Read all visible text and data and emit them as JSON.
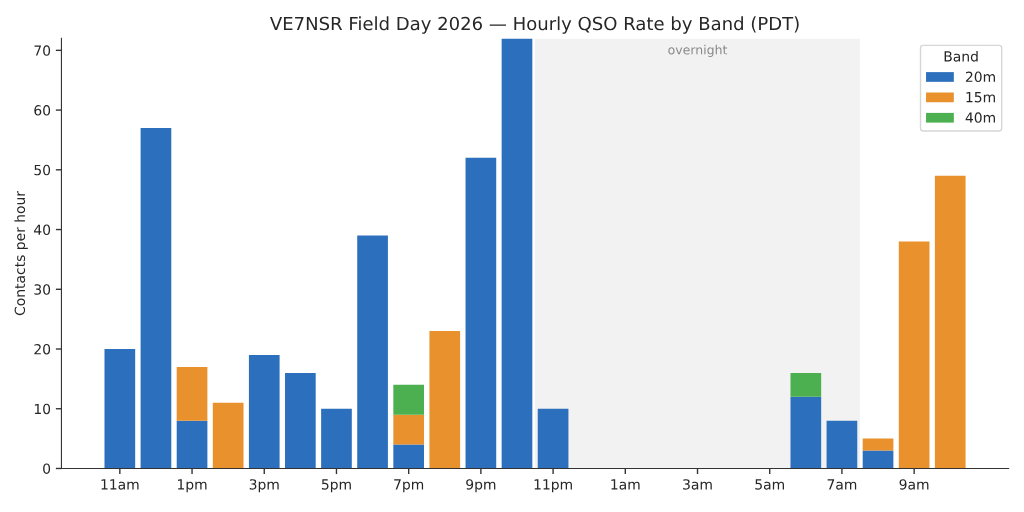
{
  "chart_data": {
    "type": "bar",
    "title": "VE7NSR Field Day 2026 — Hourly QSO Rate by Band (PDT)",
    "ylabel": "Contacts per hour",
    "legend_title": "Band",
    "categories": [
      "11am",
      null,
      "1pm",
      null,
      "3pm",
      null,
      "5pm",
      null,
      "7pm",
      null,
      "9pm",
      null,
      "11pm",
      null,
      "1am",
      null,
      "3am",
      null,
      "5am",
      null,
      "7am",
      null,
      "9am",
      null
    ],
    "stacked": true,
    "series": [
      {
        "name": "20m",
        "color": "#2c6fbd",
        "values": [
          20,
          57,
          8,
          0,
          19,
          16,
          10,
          39,
          4,
          0,
          52,
          72,
          10,
          0,
          0,
          0,
          0,
          0,
          0,
          12,
          8,
          3,
          0,
          0
        ]
      },
      {
        "name": "15m",
        "color": "#e8912d",
        "values": [
          0,
          0,
          9,
          11,
          0,
          0,
          0,
          0,
          5,
          23,
          0,
          0,
          0,
          0,
          0,
          0,
          0,
          0,
          0,
          0,
          0,
          2,
          38,
          49
        ]
      },
      {
        "name": "40m",
        "color": "#4caf50",
        "values": [
          0,
          0,
          0,
          0,
          0,
          0,
          0,
          0,
          5,
          0,
          0,
          0,
          0,
          0,
          0,
          0,
          0,
          0,
          0,
          4,
          0,
          0,
          0,
          0
        ]
      }
    ],
    "ylim": [
      0,
      72
    ],
    "yticks": [
      0,
      10,
      20,
      30,
      40,
      50,
      60,
      70
    ],
    "bands": [
      {
        "axis": "x",
        "from": "11pm",
        "to": "7am",
        "label": "overnight",
        "color": "#f2f2f2"
      }
    ],
    "grid": false,
    "legend": "top right"
  }
}
